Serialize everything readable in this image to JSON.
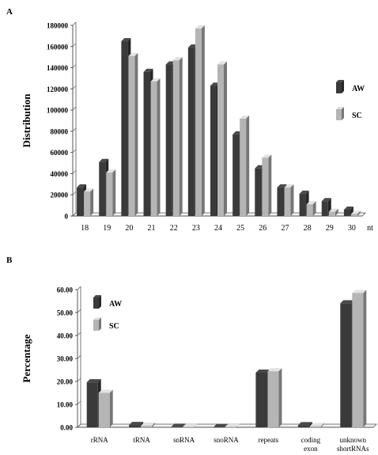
{
  "colors": {
    "AW": "#3a3a3a",
    "SC": "#b5b5b5",
    "axis": "#555555"
  },
  "chart_data": [
    {
      "panel": "A",
      "type": "bar",
      "ylabel": "Distribution",
      "xunit": "nt",
      "ylim": [
        0,
        180000
      ],
      "yticks": [
        0,
        20000,
        40000,
        60000,
        80000,
        100000,
        120000,
        140000,
        160000,
        180000
      ],
      "ytick_labels": [
        "0",
        "20000",
        "40000",
        "60000",
        "80000",
        "100000",
        "120000",
        "140000",
        "160000",
        "180000"
      ],
      "categories": [
        "18",
        "19",
        "20",
        "21",
        "22",
        "23",
        "24",
        "25",
        "26",
        "27",
        "28",
        "29",
        "30"
      ],
      "series": [
        {
          "name": "AW",
          "values": [
            27000,
            51000,
            165000,
            136000,
            143000,
            159000,
            123000,
            77000,
            45000,
            27000,
            21000,
            14000,
            6000
          ]
        },
        {
          "name": "SC",
          "values": [
            23000,
            41000,
            151000,
            127000,
            147000,
            177000,
            143000,
            92000,
            55000,
            27000,
            11000,
            4000,
            2000
          ]
        }
      ],
      "legend": "right",
      "grid": false
    },
    {
      "panel": "B",
      "type": "bar",
      "ylabel": "Percentage",
      "ylim": [
        0,
        60
      ],
      "yticks": [
        0,
        10,
        20,
        30,
        40,
        50,
        60
      ],
      "ytick_labels": [
        "0.00",
        "10.00",
        "20.00",
        "30.00",
        "40.00",
        "50.00",
        "60.00"
      ],
      "categories": [
        "rRNA",
        "tRNA",
        "snRNA",
        "snoRNA",
        "repeats",
        "coding exon",
        "unknown shortRNAs"
      ],
      "category_lines": [
        [
          "rRNA"
        ],
        [
          "tRNA"
        ],
        [
          "snRNA"
        ],
        [
          "snoRNA"
        ],
        [
          "repeats"
        ],
        [
          "coding",
          "exon"
        ],
        [
          "unknown",
          "shortRNAs"
        ]
      ],
      "series": [
        {
          "name": "AW",
          "values": [
            19.6,
            1.0,
            0.2,
            0.1,
            23.8,
            0.9,
            54.0
          ]
        },
        {
          "name": "SC",
          "values": [
            15.0,
            0.7,
            0.1,
            0.1,
            24.4,
            0.5,
            58.5
          ]
        }
      ],
      "legend": "top-left",
      "grid": false
    }
  ]
}
